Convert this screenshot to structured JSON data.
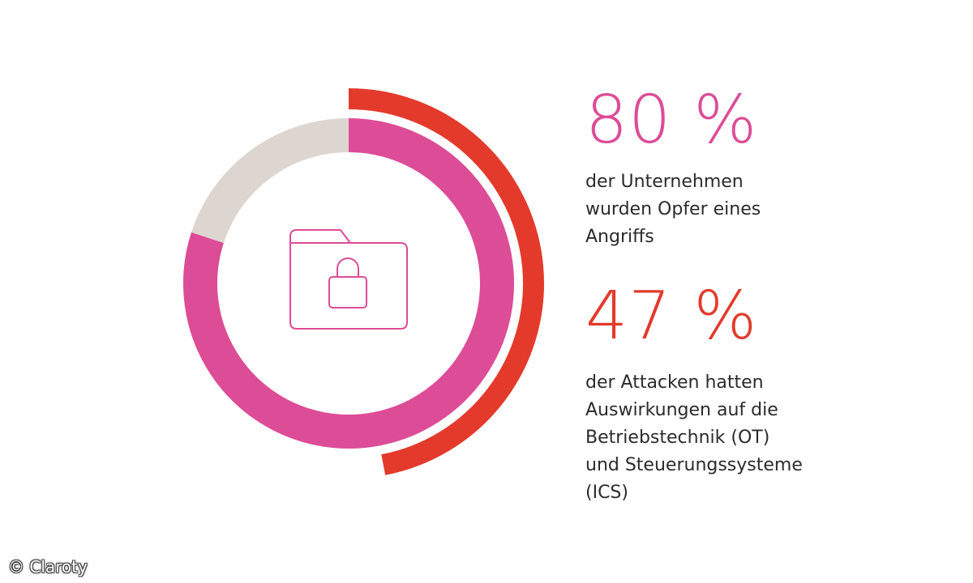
{
  "chart_data": [
    {
      "type": "pie",
      "style": "donut",
      "slices": [
        {
          "value": 80,
          "color": "#dd4c96"
        },
        {
          "value": 20,
          "color": "#ddd5d0"
        }
      ]
    },
    {
      "type": "pie",
      "style": "outer-arc",
      "slices": [
        {
          "value": 47,
          "color": "#e33a2c"
        }
      ]
    }
  ],
  "stats": [
    {
      "value": "80 %",
      "color": "#dd4c96",
      "lines": [
        "der Unternehmen",
        "wurden Opfer eines",
        "Angriffs"
      ]
    },
    {
      "value": "47 %",
      "color": "#e33a2c",
      "lines": [
        "der Attacken hatten",
        "Auswirkungen auf die",
        "Betriebstechnik (OT)",
        "und Steuerungssysteme",
        "(ICS)"
      ]
    }
  ],
  "center_icon": "locked-folder-icon",
  "copyright": "© Claroty"
}
